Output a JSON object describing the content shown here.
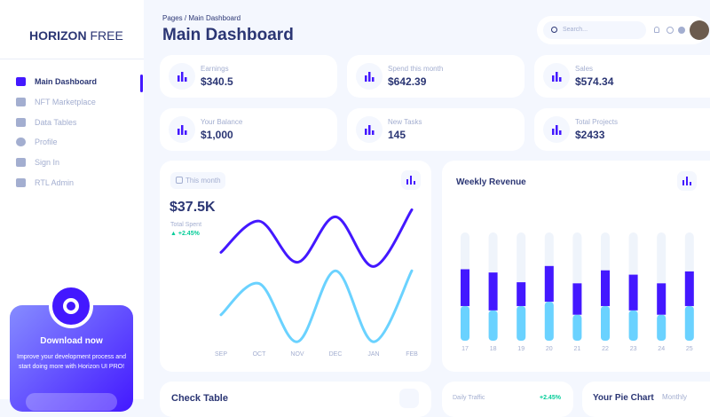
{
  "sidebar": {
    "brand_bold": "HORIZON",
    "brand_light": "FREE",
    "nav": [
      "Main Dashboard",
      "NFT Marketplace",
      "Data Tables",
      "Profile",
      "Sign In",
      "RTL Admin"
    ],
    "promo": {
      "title": "Download now",
      "text": "Improve your development process and start doing more with Horizon UI PRO!"
    }
  },
  "header": {
    "breadcrumb": "Pages",
    "separator": "/",
    "page": "Main Dashboard",
    "title": "Main Dashboard",
    "search": "Search..."
  },
  "stats": [
    {
      "label": "Earnings",
      "value": "$340.5"
    },
    {
      "label": "Spend this month",
      "value": "$642.39"
    },
    {
      "label": "Sales",
      "value": "$574.34"
    },
    {
      "label": "Your Balance",
      "value": "$1,000"
    },
    {
      "label": "New Tasks",
      "value": "145"
    },
    {
      "label": "Total Projects",
      "value": "$2433"
    }
  ],
  "spent_card": {
    "period": "This month",
    "value": "$37.5K",
    "label": "Total Spent",
    "change": "+2.45%"
  },
  "chart_data": [
    {
      "type": "line",
      "categories": [
        "SEP",
        "OCT",
        "NOV",
        "DEC",
        "JAN",
        "FEB"
      ],
      "series": [
        {
          "color": "#4318ff",
          "values": [
            66,
            88,
            59,
            91,
            56,
            96
          ]
        },
        {
          "color": "#6ad2ff",
          "values": [
            22,
            44,
            3,
            53,
            3,
            53
          ]
        }
      ],
      "ylim": [
        0,
        100
      ]
    },
    {
      "type": "bar",
      "stacked": true,
      "title": "Weekly Revenue",
      "categories": [
        "17",
        "18",
        "19",
        "20",
        "21",
        "22",
        "23",
        "24",
        "25"
      ],
      "series": [
        {
          "color": "#6ad2ff",
          "values": [
            32,
            28,
            32,
            36,
            24,
            32,
            28,
            24,
            32
          ]
        },
        {
          "color": "#4318ff",
          "values": [
            34,
            35,
            22,
            33,
            29,
            33,
            33,
            29,
            32
          ]
        }
      ],
      "ylim": [
        0,
        100
      ],
      "track_color": "#eff4fb"
    }
  ],
  "bottom": {
    "check_table": "Check Table",
    "daily_traffic": "Daily Traffic",
    "traffic_change": "+2.45%",
    "pie_chart": "Your Pie Chart",
    "period": "Monthly"
  }
}
